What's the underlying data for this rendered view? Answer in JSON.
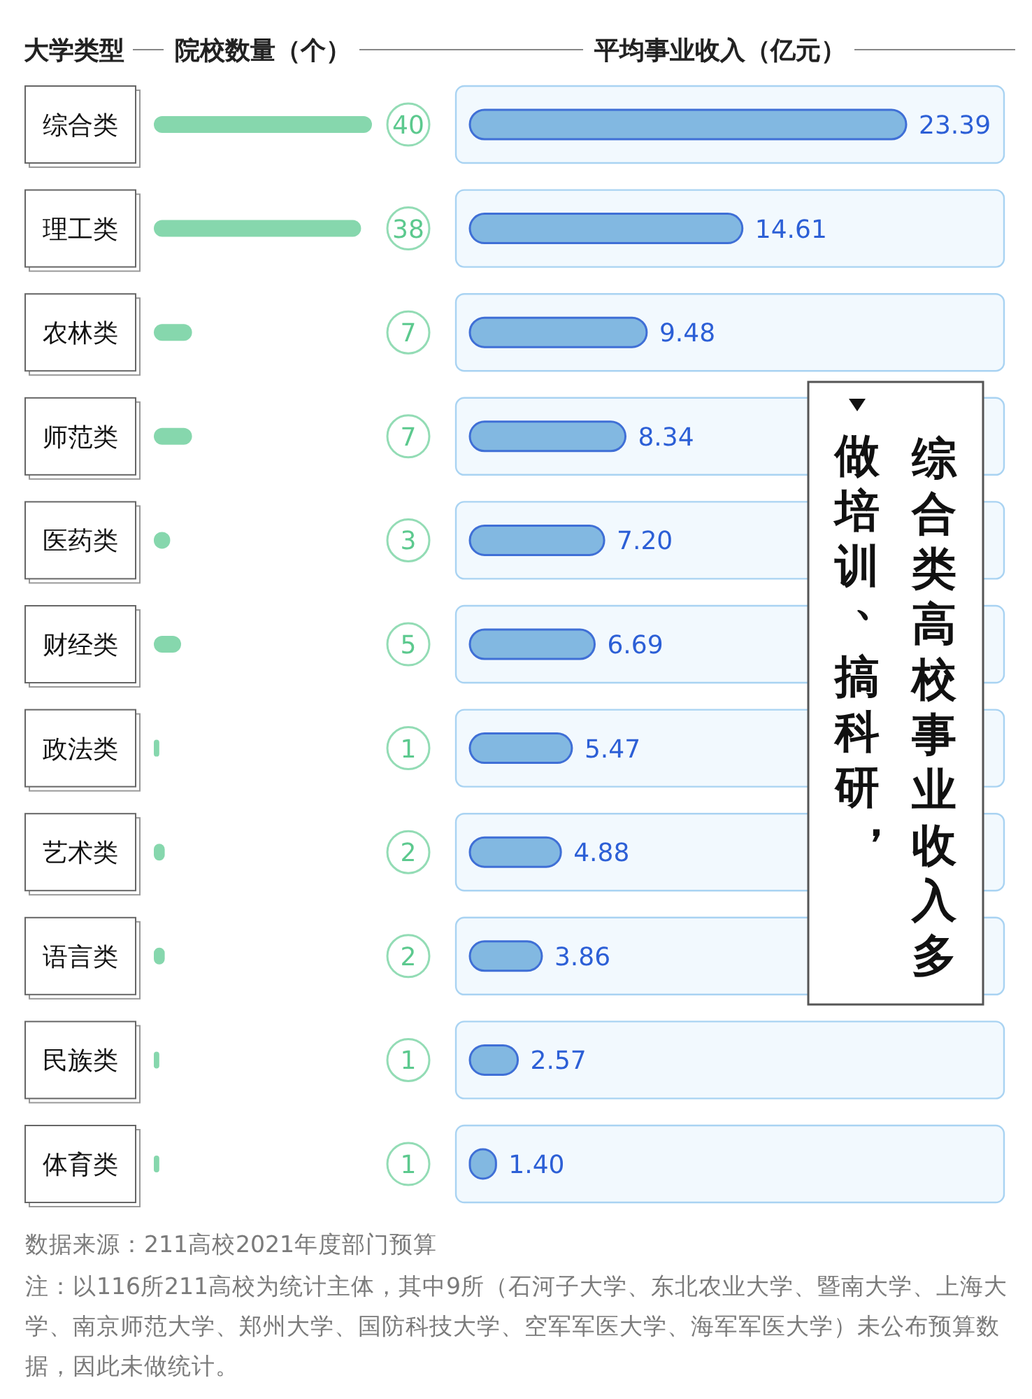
{
  "chart_data": [
    {
      "type": "bar",
      "orientation": "horizontal",
      "title": "院校数量（个）",
      "ylabel": "大学类型",
      "categories": [
        "综合类",
        "理工类",
        "农林类",
        "师范类",
        "医药类",
        "财经类",
        "政法类",
        "艺术类",
        "语言类",
        "民族类",
        "体育类"
      ],
      "values": [
        40,
        38,
        7,
        7,
        3,
        5,
        1,
        2,
        2,
        1,
        1
      ],
      "color": "#86d7ad",
      "data_labels": true,
      "tick_labels": "y"
    },
    {
      "type": "bar",
      "orientation": "horizontal",
      "title": "平均事业收入（亿元）",
      "categories": [
        null,
        null,
        null,
        null,
        null,
        null,
        null,
        null,
        null,
        null,
        null
      ],
      "values": [
        23.39,
        14.61,
        9.48,
        8.34,
        7.2,
        6.69,
        5.47,
        4.88,
        3.86,
        2.57,
        1.4
      ],
      "value_labels": [
        "23.39",
        "14.61",
        "9.48",
        "8.34",
        "7.20",
        "6.69",
        "5.47",
        "4.88",
        "3.86",
        "2.57",
        "1.40"
      ],
      "color": "#82b8e1",
      "annotations": [
        "综合类高校事业收入多",
        "做培训、搞科研，",
        "数据来源：211高校2021年度部门预算",
        "注：以116所211高校为统计主体，其中9所（石河子大学、东北农业大学、暨南大学、上海大学、南京师范大学、郑州大学、国防科技大学、空军军医大学、海军军医大学）未公布预算数据，因此未做统计。"
      ]
    }
  ]
}
